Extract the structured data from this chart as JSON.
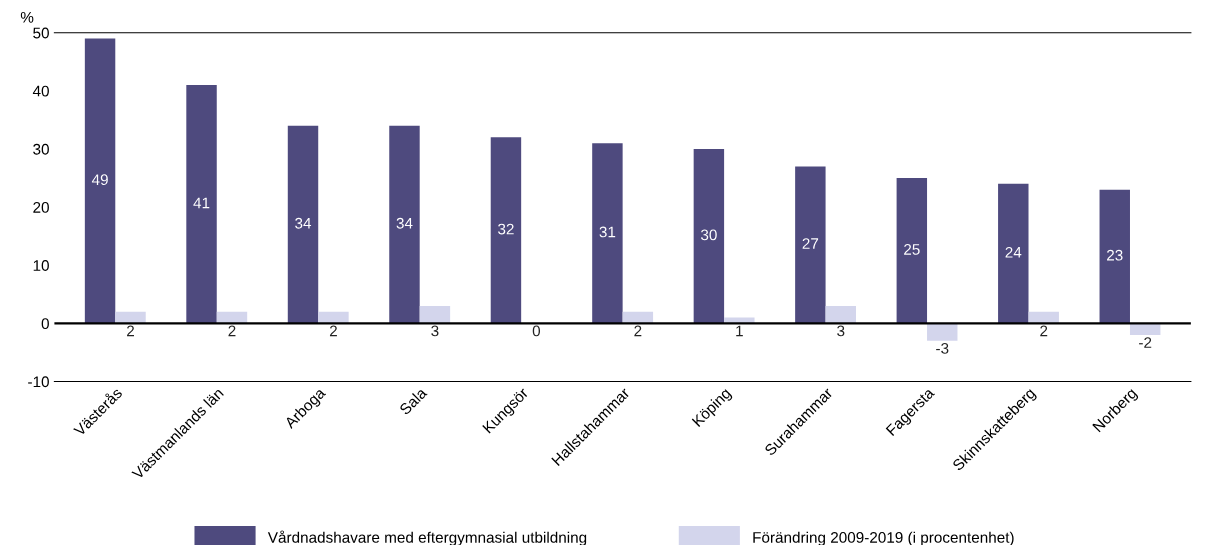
{
  "chart_data": {
    "type": "bar",
    "ylabel": "%",
    "categories": [
      "Västerås",
      "Västmanlands län",
      "Arboga",
      "Sala",
      "Kungsör",
      "Hallstahammar",
      "Köping",
      "Surahammar",
      "Fagersta",
      "Skinnskatteberg",
      "Norberg"
    ],
    "series": [
      {
        "name": "Vårdnadshavare med eftergymnasial utbildning",
        "color": "#4e4a7e",
        "values": [
          49,
          41,
          34,
          34,
          32,
          31,
          30,
          27,
          25,
          24,
          23
        ]
      },
      {
        "name": "Förändring 2009-2019 (i procentenhet)",
        "color": "#d3d5ec",
        "values": [
          2,
          2,
          2,
          3,
          0,
          2,
          1,
          3,
          -3,
          2,
          -2
        ]
      }
    ],
    "ylim": [
      -10,
      50
    ],
    "yticks": [
      -10,
      0,
      10,
      20,
      30,
      40,
      50
    ],
    "ref_lines": [
      {
        "axis": "y",
        "value": 0,
        "color": "#000000"
      }
    ],
    "data_labels": true,
    "grid": false,
    "legend": "bottom"
  }
}
